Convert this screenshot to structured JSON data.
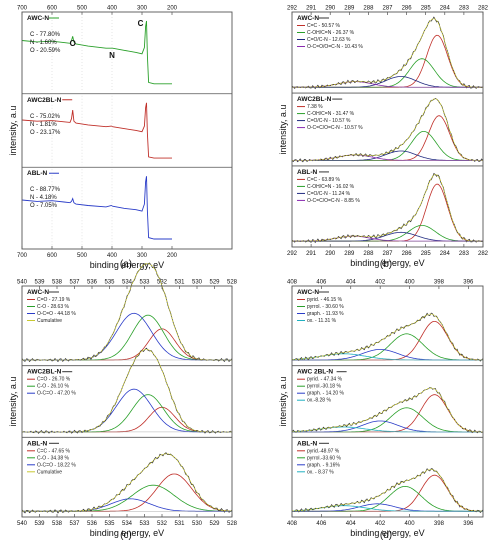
{
  "colors": {
    "exp": "#333333",
    "cum": "#c8c832",
    "red": "#c0302a",
    "green": "#2aa02a",
    "blue": "#2a3cc8",
    "navy": "#202a80",
    "purple": "#8a2ab0",
    "cyan": "#20b0c0",
    "frame": "#555555"
  },
  "chart_data": [
    {
      "type": "line",
      "caption": "(a)",
      "xlabel": "binding energy, eV",
      "ylabel": "intensity, a.u",
      "xlim": [
        700,
        0
      ],
      "xticks_top": [
        "700",
        "600",
        "500",
        "400",
        "300",
        "200"
      ],
      "xticks_bottom": [
        "700",
        "600",
        "500",
        "400",
        "300",
        "200"
      ],
      "peak_labels": [
        {
          "text": "O",
          "x": 531
        },
        {
          "text": "N",
          "x": 400
        },
        {
          "text": "C",
          "x": 285
        }
      ],
      "subpanels": [
        {
          "name": "AWC-N",
          "color": "green",
          "annotations": [
            "C - 77.80%",
            "N - 1.60%",
            "O - 20.59%"
          ],
          "series": [
            {
              "name": "AWC-N",
              "color": "green",
              "x": [
                700,
                650,
                600,
                560,
                540,
                535,
                531,
                527,
                520,
                480,
                420,
                402,
                398,
                360,
                320,
                300,
                292,
                288,
                285,
                282,
                278,
                260,
                220,
                200
              ],
              "y": [
                0.72,
                0.7,
                0.71,
                0.69,
                0.68,
                0.72,
                0.78,
                0.7,
                0.67,
                0.64,
                0.61,
                0.61,
                0.61,
                0.58,
                0.55,
                0.53,
                0.62,
                0.92,
                1.0,
                0.5,
                0.12,
                0.1,
                0.1,
                0.1
              ]
            }
          ]
        },
        {
          "name": "AWC2BL-N",
          "color": "red",
          "annotations": [
            "C - 75.02%",
            "N - 1.81%",
            "O - 23.17%"
          ],
          "series": [
            {
              "name": "AWC2BL-N",
              "color": "red",
              "x": [
                700,
                650,
                600,
                560,
                540,
                535,
                531,
                527,
                520,
                480,
                420,
                402,
                398,
                360,
                320,
                300,
                292,
                288,
                285,
                282,
                278,
                260,
                220,
                200
              ],
              "y": [
                0.72,
                0.7,
                0.71,
                0.69,
                0.68,
                0.74,
                0.88,
                0.7,
                0.67,
                0.64,
                0.61,
                0.62,
                0.61,
                0.58,
                0.55,
                0.53,
                0.62,
                0.92,
                1.0,
                0.5,
                0.12,
                0.1,
                0.1,
                0.1
              ]
            }
          ]
        },
        {
          "name": "ABL-N",
          "color": "blue",
          "annotations": [
            "C - 88.77%",
            "N - 4.18%",
            "O - 7.05%"
          ],
          "series": [
            {
              "name": "ABL-N",
              "color": "blue",
              "x": [
                700,
                650,
                600,
                560,
                540,
                535,
                531,
                527,
                520,
                480,
                420,
                402,
                398,
                360,
                320,
                300,
                292,
                288,
                285,
                282,
                278,
                260,
                220,
                200
              ],
              "y": [
                0.66,
                0.64,
                0.65,
                0.63,
                0.62,
                0.64,
                0.68,
                0.62,
                0.6,
                0.58,
                0.56,
                0.58,
                0.57,
                0.54,
                0.52,
                0.5,
                0.6,
                0.92,
                1.0,
                0.5,
                0.12,
                0.1,
                0.1,
                0.1
              ]
            }
          ]
        }
      ]
    },
    {
      "type": "line",
      "caption": "(b)",
      "xlabel": "binding energy, eV",
      "ylabel": "intensity, a.u",
      "xlim": [
        292,
        282
      ],
      "xticks": [
        "292",
        "291",
        "290",
        "289",
        "288",
        "287",
        "286",
        "285",
        "284",
        "283",
        "282"
      ],
      "subpanels": [
        {
          "name": "AWC-N",
          "legend": [
            {
              "text": "C=C - 50.57 %",
              "color": "red"
            },
            {
              "text": "C-OH/C=N - 26.37 %",
              "color": "green"
            },
            {
              "text": "C=O/C-N - 12.63 %",
              "color": "navy"
            },
            {
              "text": "O-C=O/O=C-N - 10.43 %",
              "color": "purple"
            }
          ],
          "components": [
            {
              "center": 284.4,
              "width": 0.55,
              "height": 0.82,
              "color": "red"
            },
            {
              "center": 285.2,
              "width": 0.65,
              "height": 0.45,
              "color": "green"
            },
            {
              "center": 286.3,
              "width": 0.8,
              "height": 0.17,
              "color": "navy"
            },
            {
              "center": 288.7,
              "width": 0.9,
              "height": 0.09,
              "color": "purple"
            }
          ]
        },
        {
          "name": "AWC2BL-N",
          "legend": [
            {
              "text": "7.38 %",
              "color": "red"
            },
            {
              "text": "C-OH/C=N - 31.47 %",
              "color": "green"
            },
            {
              "text": "C=O/C-N - 10.57 %",
              "color": "navy"
            },
            {
              "text": "O-C=C/O=C-N - 10.57 %",
              "color": "purple"
            }
          ],
          "components": [
            {
              "center": 284.3,
              "width": 0.55,
              "height": 0.8,
              "color": "red"
            },
            {
              "center": 285.1,
              "width": 0.65,
              "height": 0.52,
              "color": "green"
            },
            {
              "center": 286.3,
              "width": 0.8,
              "height": 0.17,
              "color": "navy"
            },
            {
              "center": 288.7,
              "width": 0.9,
              "height": 0.1,
              "color": "purple"
            }
          ]
        },
        {
          "name": "ABL-N",
          "legend": [
            {
              "text": "C=C - 63.89 %",
              "color": "red"
            },
            {
              "text": "C-OH/C=N - 16.02 %",
              "color": "green"
            },
            {
              "text": "C=O/C-N - 11.24 %",
              "color": "navy"
            },
            {
              "text": "O-C=C/O=C-N - 8.85 %",
              "color": "purple"
            }
          ],
          "components": [
            {
              "center": 284.4,
              "width": 0.55,
              "height": 0.9,
              "color": "red"
            },
            {
              "center": 285.2,
              "width": 0.7,
              "height": 0.25,
              "color": "green"
            },
            {
              "center": 286.3,
              "width": 0.85,
              "height": 0.14,
              "color": "navy"
            },
            {
              "center": 288.8,
              "width": 0.9,
              "height": 0.08,
              "color": "purple"
            }
          ]
        }
      ]
    },
    {
      "type": "line",
      "caption": "(c)",
      "xlabel": "binding energy, eV",
      "ylabel": "intensity, a.u",
      "xlim": [
        540,
        528
      ],
      "xticks": [
        "540",
        "539",
        "538",
        "537",
        "536",
        "535",
        "534",
        "533",
        "532",
        "531",
        "530",
        "529",
        "528"
      ],
      "subpanels": [
        {
          "name": "AWC-N",
          "legend": [
            {
              "text": "C=O - 27.19 %",
              "color": "red"
            },
            {
              "text": "C-O - 28.63 %",
              "color": "green"
            },
            {
              "text": "O-C=O - 44.18 %",
              "color": "blue"
            },
            {
              "text": "Cumulative",
              "color": "cum"
            }
          ],
          "components": [
            {
              "center": 532.0,
              "width": 0.75,
              "height": 0.5,
              "color": "red"
            },
            {
              "center": 532.8,
              "width": 0.9,
              "height": 0.72,
              "color": "green"
            },
            {
              "center": 533.6,
              "width": 1.0,
              "height": 0.75,
              "color": "blue"
            }
          ]
        },
        {
          "name": "AWC2BL-N",
          "legend": [
            {
              "text": "C=O - 26.70 %",
              "color": "red"
            },
            {
              "text": "C-O - 26.10 %",
              "color": "green"
            },
            {
              "text": "O-C=O - 47.20 %",
              "color": "blue"
            }
          ],
          "components": [
            {
              "center": 532.0,
              "width": 0.75,
              "height": 0.45,
              "color": "red"
            },
            {
              "center": 532.8,
              "width": 0.9,
              "height": 0.68,
              "color": "green"
            },
            {
              "center": 533.6,
              "width": 1.0,
              "height": 0.78,
              "color": "blue"
            }
          ]
        },
        {
          "name": "ABL-N",
          "legend": [
            {
              "text": "C=C - 47.65 %",
              "color": "red"
            },
            {
              "text": "C-O - 34.38 %",
              "color": "green"
            },
            {
              "text": "O-C=O - 18.22 %",
              "color": "blue"
            },
            {
              "text": "Cumulative",
              "color": "cum"
            }
          ],
          "components": [
            {
              "center": 531.3,
              "width": 1.0,
              "height": 0.6,
              "color": "red"
            },
            {
              "center": 532.5,
              "width": 1.2,
              "height": 0.42,
              "color": "green"
            },
            {
              "center": 533.8,
              "width": 1.1,
              "height": 0.2,
              "color": "blue"
            }
          ]
        }
      ]
    },
    {
      "type": "line",
      "caption": "(d)",
      "xlabel": "binding energy, eV",
      "ylabel": "intensity, a.u",
      "xlim": [
        408,
        395
      ],
      "xticks": [
        "408",
        "406",
        "404",
        "402",
        "400",
        "398",
        "396"
      ],
      "subpanels": [
        {
          "name": "AWC-N",
          "legend": [
            {
              "text": "pyrid. - 46.15 %",
              "color": "red"
            },
            {
              "text": "pyrrol. - 30.60 %",
              "color": "green"
            },
            {
              "text": "graph. - 11.93 %",
              "color": "blue"
            },
            {
              "text": "ox. - 11.31 %",
              "color": "cyan"
            }
          ],
          "components": [
            {
              "center": 398.3,
              "width": 0.9,
              "height": 0.62,
              "color": "red"
            },
            {
              "center": 400.2,
              "width": 1.1,
              "height": 0.42,
              "color": "green"
            },
            {
              "center": 402.0,
              "width": 1.2,
              "height": 0.17,
              "color": "blue"
            },
            {
              "center": 404.5,
              "width": 1.5,
              "height": 0.1,
              "color": "cyan"
            }
          ]
        },
        {
          "name": "AWC 2BL-N",
          "legend": [
            {
              "text": "pyrid. - 47.34 %",
              "color": "red"
            },
            {
              "text": "pyrrol.-30.18 %",
              "color": "green"
            },
            {
              "text": "graph. - 14.20 %",
              "color": "blue"
            },
            {
              "text": "ox.-8.28 %",
              "color": "cyan"
            }
          ],
          "components": [
            {
              "center": 398.3,
              "width": 0.9,
              "height": 0.68,
              "color": "red"
            },
            {
              "center": 400.2,
              "width": 1.1,
              "height": 0.44,
              "color": "green"
            },
            {
              "center": 402.0,
              "width": 1.2,
              "height": 0.2,
              "color": "blue"
            },
            {
              "center": 404.5,
              "width": 1.5,
              "height": 0.09,
              "color": "cyan"
            }
          ]
        },
        {
          "name": "ABL-N",
          "legend": [
            {
              "text": "pyrid.-48.97 %",
              "color": "red"
            },
            {
              "text": "pyrrol.-33.60 %",
              "color": "green"
            },
            {
              "text": "graph. - 9.16%",
              "color": "blue"
            },
            {
              "text": "ox. - 8.37 %",
              "color": "cyan"
            }
          ],
          "components": [
            {
              "center": 398.3,
              "width": 0.9,
              "height": 0.58,
              "color": "red"
            },
            {
              "center": 400.3,
              "width": 1.1,
              "height": 0.4,
              "color": "green"
            },
            {
              "center": 402.2,
              "width": 1.2,
              "height": 0.12,
              "color": "blue"
            },
            {
              "center": 404.5,
              "width": 1.5,
              "height": 0.09,
              "color": "cyan"
            }
          ]
        }
      ]
    }
  ]
}
